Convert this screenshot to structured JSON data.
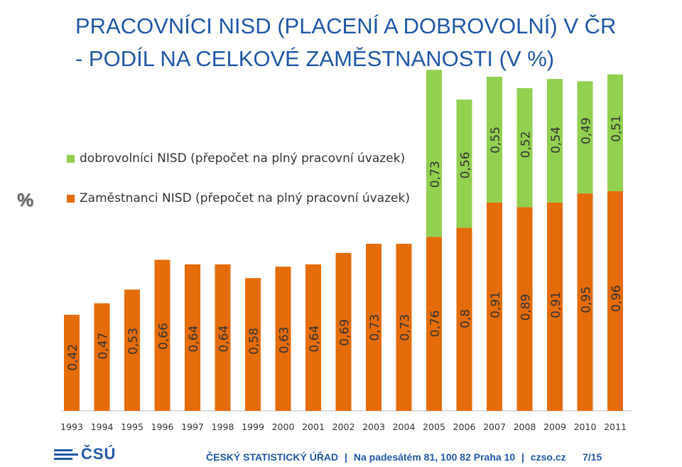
{
  "slide": {
    "title_line1": "PRACOVNÍCI NISD (PLACENÍ A DOBROVOLNÍ) V ČR",
    "title_line2": "- PODÍL NA CELKOVÉ ZAMĚSTNANOSTI (V %)",
    "unit_label": "%"
  },
  "colors": {
    "title": "#1f57a6",
    "employees": "#e46c0a",
    "volunteers": "#92d050",
    "axis": "#bfbfbf"
  },
  "chart_data": {
    "type": "bar",
    "stacked": true,
    "categories": [
      "1993",
      "1994",
      "1995",
      "1996",
      "1997",
      "1998",
      "1999",
      "2000",
      "2001",
      "2002",
      "2003",
      "2004",
      "2005",
      "2006",
      "2007",
      "2008",
      "2009",
      "2010",
      "2011"
    ],
    "series": [
      {
        "name": "Zaměstnanci NISD (přepočet na plný pracovní úvazek)",
        "color": "#e46c0a",
        "values": [
          0.42,
          0.47,
          0.53,
          0.66,
          0.64,
          0.64,
          0.58,
          0.63,
          0.64,
          0.69,
          0.73,
          0.73,
          0.76,
          0.8,
          0.91,
          0.89,
          0.91,
          0.95,
          0.96
        ],
        "labels": [
          "0,42",
          "0,47",
          "0,53",
          "0,66",
          "0,64",
          "0,64",
          "0,58",
          "0,63",
          "0,64",
          "0,69",
          "0,73",
          "0,73",
          "0,76",
          "0,8",
          "0,91",
          "0,89",
          "0,91",
          "0,95",
          "0,96"
        ]
      },
      {
        "name": "dobrovolníci  NISD (přepočet na plný pracovní úvazek)",
        "color": "#92d050",
        "values": [
          null,
          null,
          null,
          null,
          null,
          null,
          null,
          null,
          null,
          null,
          null,
          null,
          0.73,
          0.56,
          0.55,
          0.52,
          0.54,
          0.49,
          0.51
        ],
        "labels": [
          null,
          null,
          null,
          null,
          null,
          null,
          null,
          null,
          null,
          null,
          null,
          null,
          "0,73",
          "0,56",
          "0,55",
          "0,52",
          "0,54",
          "0,49",
          "0,51"
        ]
      }
    ],
    "ylim": [
      0,
      1.5
    ],
    "legend": "top-left",
    "grid": false,
    "data_label_orientation": "vertical"
  },
  "footer": {
    "logo_text": "ČSÚ",
    "org": "ČESKÝ STATISTICKÝ ÚŘAD",
    "separator": "|",
    "address": "Na padesátém 81, 100 82 Praha 10",
    "web": "czso.cz",
    "page": "7/15"
  }
}
